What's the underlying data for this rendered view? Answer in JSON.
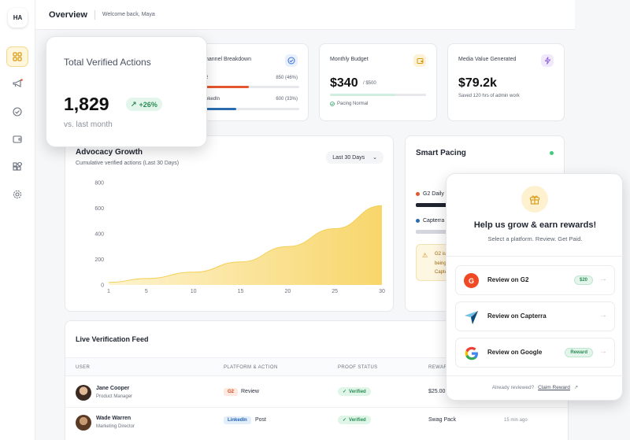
{
  "sidebar": {
    "logo": "HA",
    "icons": [
      "dashboard-icon",
      "megaphone-icon",
      "check-circle-icon",
      "wallet-icon",
      "apps-icon",
      "settings-icon"
    ]
  },
  "header": {
    "title": "Overview",
    "welcome": "Welcome back, Maya"
  },
  "channel": {
    "title": "hannel Breakdown",
    "rows": [
      {
        "label": "2",
        "value": "850 (46%)",
        "pct": 0.46,
        "color": "#e4572e"
      },
      {
        "label": "nkedIn",
        "value": "600 (33%)",
        "pct": 0.33,
        "color": "#2b6cb0"
      }
    ]
  },
  "budget": {
    "title": "Monthly Budget",
    "amount": "$340",
    "total": "/ $500",
    "status": "Pacing Normal",
    "progress": 0.68
  },
  "media": {
    "title": "Media Value Generated",
    "amount": "$79.2k",
    "sub": "Saved 120 hrs of admin work"
  },
  "verified": {
    "title": "Total Verified Actions",
    "value": "1,829",
    "delta": "+26%",
    "sub": "vs. last month"
  },
  "growth": {
    "title": "Advocacy Growth",
    "subtitle": "Cumulative verified actions (Last 30 Days)",
    "range": "Last 30 Days",
    "chart_data": {
      "type": "area",
      "x": [
        1,
        5,
        10,
        15,
        20,
        25,
        30
      ],
      "y": [
        20,
        50,
        100,
        180,
        300,
        440,
        620
      ],
      "x_ticks": [
        "1",
        "5",
        "10",
        "15",
        "20",
        "25",
        "30"
      ],
      "y_ticks": [
        "0",
        "200",
        "400",
        "600",
        "800"
      ],
      "ylim": [
        0,
        800
      ],
      "xlim": [
        1,
        30
      ]
    }
  },
  "pacing": {
    "title": "Smart Pacing",
    "items": [
      {
        "label": "G2 Daily",
        "color": "#e4572e",
        "bar": "#1f2430"
      },
      {
        "label": "Capterra",
        "color": "#2b6cb0",
        "bar": "#d3d6dc"
      }
    ],
    "alert": [
      "G2 is",
      "being",
      "Capte"
    ]
  },
  "feed": {
    "title": "Live Verification Feed",
    "columns": [
      "USER",
      "PLATFORM & ACTION",
      "PROOF STATUS",
      "REWAR"
    ],
    "rows": [
      {
        "name": "Jane Cooper",
        "role": "Product Manager",
        "platform": "G2",
        "action": "Review",
        "status": "Verified",
        "reward": "$25.00",
        "time": ""
      },
      {
        "name": "Wade Warren",
        "role": "Marketing Director",
        "platform": "LinkedIn",
        "action": "Post",
        "status": "Verified",
        "reward": "Swag Pack",
        "time": "15 min ago"
      }
    ]
  },
  "rewards": {
    "title": "Help us grow & earn rewards!",
    "subtitle": "Select a platform. Review. Get Paid.",
    "options": [
      {
        "label": "Review on G2",
        "badge": "$20"
      },
      {
        "label": "Review on Capterra",
        "badge": ""
      },
      {
        "label": "Review on Google",
        "badge": "Reward"
      }
    ],
    "footer": "Already reviewed?",
    "claim": "Claim Reward"
  }
}
